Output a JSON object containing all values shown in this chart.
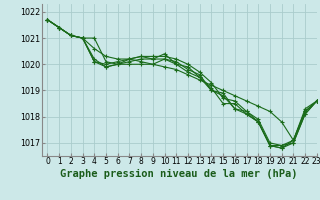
{
  "bg_color": "#cce8e8",
  "grid_color": "#aacccc",
  "line_color": "#1a6b1a",
  "line_width": 0.8,
  "marker": "+",
  "marker_size": 3,
  "marker_edge_width": 0.8,
  "title": "Graphe pression niveau de la mer (hPa)",
  "title_fontsize": 7.5,
  "tick_fontsize": 5.5,
  "ytick_fontsize": 5.8,
  "xlim": [
    -0.5,
    23
  ],
  "ylim": [
    1016.5,
    1022.3
  ],
  "yticks": [
    1017,
    1018,
    1019,
    1020,
    1021,
    1022
  ],
  "xticks": [
    0,
    1,
    2,
    3,
    4,
    5,
    6,
    7,
    8,
    9,
    10,
    11,
    12,
    13,
    14,
    15,
    16,
    17,
    18,
    19,
    20,
    21,
    22,
    23
  ],
  "series": [
    [
      1021.7,
      1021.4,
      1021.1,
      1021.0,
      1021.0,
      1020.1,
      1020.0,
      1020.0,
      1020.0,
      1020.0,
      1020.2,
      1020.0,
      1019.7,
      1019.5,
      1019.0,
      1018.8,
      1018.3,
      1018.2,
      1017.8,
      1016.9,
      1016.8,
      1017.0,
      1018.1,
      1018.6
    ],
    [
      1021.7,
      1021.4,
      1021.1,
      1021.0,
      1020.2,
      1019.9,
      1020.0,
      1020.1,
      1020.2,
      1020.2,
      1020.2,
      1020.1,
      1019.8,
      1019.6,
      1019.0,
      1018.9,
      1018.3,
      1018.1,
      1017.8,
      1016.9,
      1016.9,
      1017.0,
      1018.1,
      1018.6
    ],
    [
      1021.7,
      1021.4,
      1021.1,
      1021.0,
      1020.1,
      1019.9,
      1020.0,
      1020.2,
      1020.3,
      1020.2,
      1020.4,
      1020.0,
      1019.9,
      1019.5,
      1019.1,
      1018.5,
      1018.5,
      1018.1,
      1017.8,
      1016.9,
      1016.8,
      1017.1,
      1018.3,
      1018.6
    ],
    [
      1021.7,
      1021.4,
      1021.1,
      1021.0,
      1020.1,
      1020.0,
      1020.1,
      1020.2,
      1020.3,
      1020.3,
      1020.3,
      1020.2,
      1020.0,
      1019.7,
      1019.3,
      1018.7,
      1018.6,
      1018.2,
      1017.9,
      1017.0,
      1016.9,
      1017.1,
      1018.2,
      1018.6
    ],
    [
      1021.7,
      1021.4,
      1021.1,
      1021.0,
      1020.6,
      1020.3,
      1020.2,
      1020.2,
      1020.1,
      1020.0,
      1019.9,
      1019.8,
      1019.6,
      1019.4,
      1019.2,
      1019.0,
      1018.8,
      1018.6,
      1018.4,
      1018.2,
      1017.8,
      1017.1,
      1018.2,
      1018.6
    ]
  ]
}
